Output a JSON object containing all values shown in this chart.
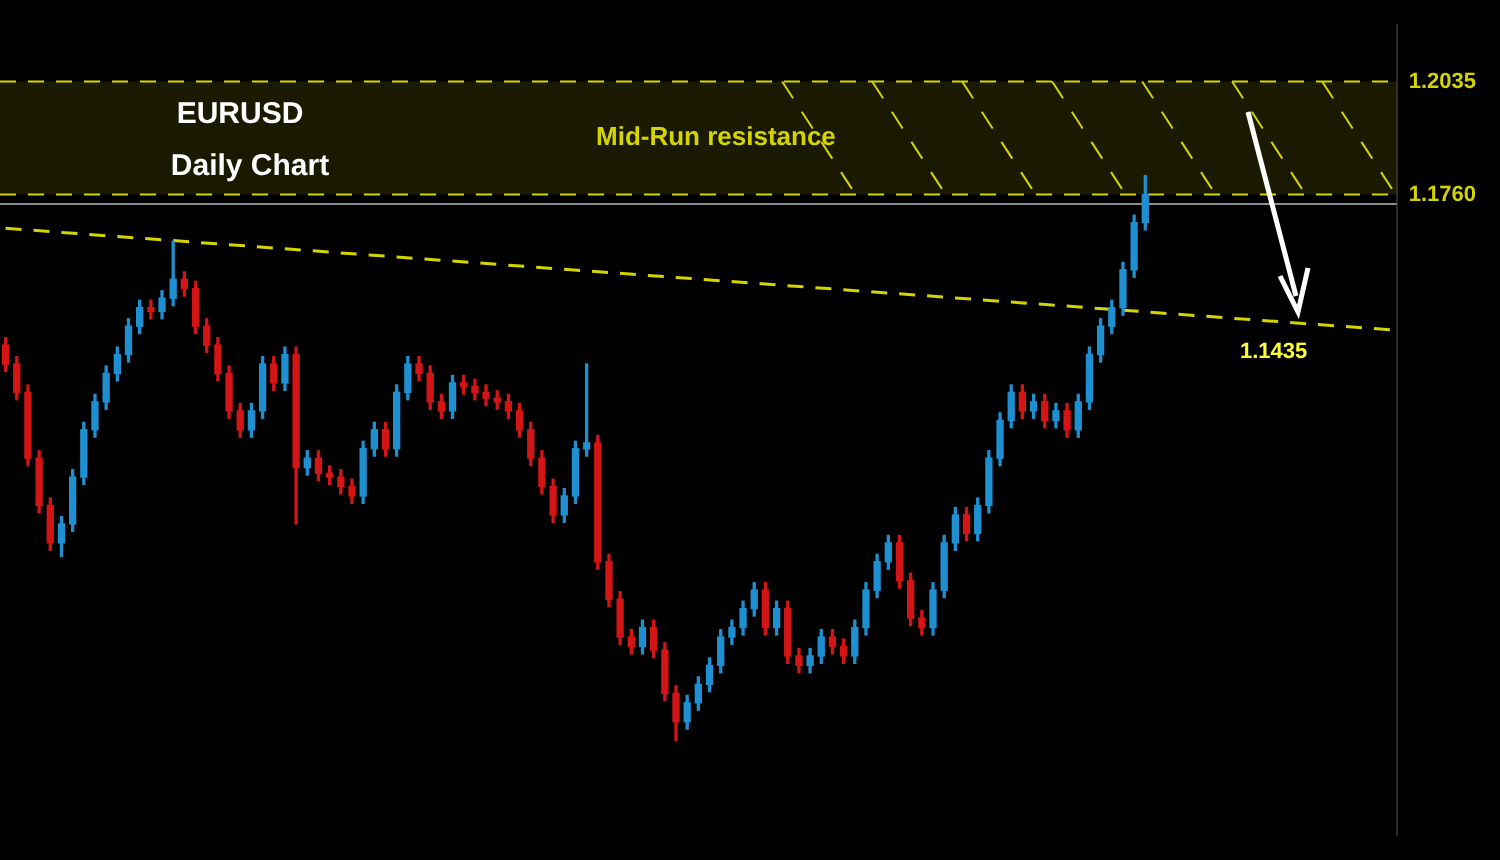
{
  "chart_data": {
    "type": "candlestick",
    "title": "EURUSD",
    "subtitle": "Daily Chart",
    "categories": [
      null,
      null,
      null,
      null,
      null,
      null,
      null,
      null,
      null,
      null,
      null,
      null,
      null,
      null,
      null,
      null,
      null,
      null,
      null,
      null,
      null,
      null,
      null,
      null,
      null,
      null,
      null,
      null,
      null,
      null,
      null,
      null,
      null,
      null,
      null,
      null,
      null,
      null,
      null,
      null,
      null,
      null,
      null,
      null,
      null,
      null,
      null,
      null,
      null,
      null,
      null,
      null,
      null,
      null,
      null,
      null,
      null,
      null,
      null,
      null,
      null,
      null,
      null,
      null,
      null,
      null,
      null,
      null,
      null,
      null,
      null,
      null,
      null,
      null,
      null,
      null,
      null,
      null,
      null,
      null,
      null,
      null,
      null,
      null,
      null,
      null,
      null,
      null,
      null,
      null,
      null,
      null,
      null,
      null,
      null,
      null,
      null,
      null,
      null,
      null,
      null,
      null,
      null,
      null,
      null,
      null,
      null,
      null,
      null,
      null,
      null,
      null,
      null,
      null,
      null,
      null,
      null,
      null,
      null,
      null,
      null,
      null,
      null,
      null,
      null
    ],
    "ohlc": [
      [
        1.1394,
        1.1412,
        1.133,
        1.1348
      ],
      [
        1.1348,
        1.1366,
        1.1261,
        1.1279
      ],
      [
        1.1279,
        1.1297,
        1.1101,
        1.1119
      ],
      [
        1.1119,
        1.1137,
        1.0986,
        1.1004
      ],
      [
        1.1004,
        1.1022,
        1.0895,
        1.0913
      ],
      [
        1.0913,
        1.0977,
        1.088,
        1.0959
      ],
      [
        1.0959,
        1.1091,
        1.0941,
        1.1073
      ],
      [
        1.1073,
        1.1206,
        1.1055,
        1.1188
      ],
      [
        1.1188,
        1.1274,
        1.117,
        1.1256
      ],
      [
        1.1256,
        1.1343,
        1.1238,
        1.1325
      ],
      [
        1.1325,
        1.1389,
        1.1307,
        1.1371
      ],
      [
        1.1371,
        1.1458,
        1.1353,
        1.144
      ],
      [
        1.144,
        1.1503,
        1.1422,
        1.1485
      ],
      [
        1.1485,
        1.1503,
        1.1458,
        1.1476
      ],
      [
        1.1476,
        1.1526,
        1.1458,
        1.1508
      ],
      [
        1.1508,
        1.1646,
        1.149,
        1.1554
      ],
      [
        1.1554,
        1.1572,
        1.1513,
        1.1531
      ],
      [
        1.1531,
        1.1549,
        1.1422,
        1.144
      ],
      [
        1.144,
        1.1458,
        1.1376,
        1.1394
      ],
      [
        1.1394,
        1.1412,
        1.1307,
        1.1325
      ],
      [
        1.1325,
        1.1343,
        1.1216,
        1.1234
      ],
      [
        1.1234,
        1.1252,
        1.117,
        1.1188
      ],
      [
        1.1188,
        1.1252,
        1.117,
        1.1234
      ],
      [
        1.1234,
        1.1366,
        1.1216,
        1.1348
      ],
      [
        1.1348,
        1.1366,
        1.1284,
        1.1302
      ],
      [
        1.1302,
        1.1389,
        1.1284,
        1.1371
      ],
      [
        1.1371,
        1.1389,
        1.0959,
        1.1096
      ],
      [
        1.1096,
        1.1137,
        1.1078,
        1.1119
      ],
      [
        1.1119,
        1.1137,
        1.1064,
        1.1082
      ],
      [
        1.1082,
        1.11,
        1.1055,
        1.1073
      ],
      [
        1.1073,
        1.1091,
        1.1032,
        1.105
      ],
      [
        1.105,
        1.1068,
        1.1009,
        1.1027
      ],
      [
        1.1027,
        1.116,
        1.1009,
        1.1142
      ],
      [
        1.1142,
        1.1206,
        1.1124,
        1.1188
      ],
      [
        1.1188,
        1.1206,
        1.1124,
        1.1142
      ],
      [
        1.1142,
        1.1297,
        1.1124,
        1.1279
      ],
      [
        1.1279,
        1.1366,
        1.1261,
        1.1348
      ],
      [
        1.1348,
        1.1366,
        1.1307,
        1.1325
      ],
      [
        1.1325,
        1.1343,
        1.1238,
        1.1256
      ],
      [
        1.1256,
        1.1274,
        1.1216,
        1.1234
      ],
      [
        1.1234,
        1.132,
        1.1216,
        1.1302
      ],
      [
        1.1302,
        1.132,
        1.1275,
        1.1293
      ],
      [
        1.1293,
        1.1311,
        1.1261,
        1.1279
      ],
      [
        1.1279,
        1.1297,
        1.1247,
        1.1265
      ],
      [
        1.1265,
        1.1283,
        1.1238,
        1.1256
      ],
      [
        1.1256,
        1.1274,
        1.1216,
        1.1234
      ],
      [
        1.1234,
        1.1252,
        1.117,
        1.1188
      ],
      [
        1.1188,
        1.1206,
        1.1101,
        1.1119
      ],
      [
        1.1119,
        1.1137,
        1.1032,
        1.105
      ],
      [
        1.105,
        1.1068,
        1.0963,
        1.0981
      ],
      [
        1.0981,
        1.1045,
        1.0963,
        1.1027
      ],
      [
        1.1027,
        1.116,
        1.1009,
        1.1142
      ],
      [
        1.1142,
        1.1348,
        1.1124,
        1.1156
      ],
      [
        1.1156,
        1.1174,
        1.0849,
        1.0867
      ],
      [
        1.0867,
        1.0885,
        1.0758,
        1.0776
      ],
      [
        1.0776,
        1.0794,
        1.0666,
        1.0684
      ],
      [
        1.0684,
        1.0702,
        1.0643,
        1.0661
      ],
      [
        1.0661,
        1.0725,
        1.0643,
        1.0707
      ],
      [
        1.0707,
        1.0725,
        1.0634,
        1.0652
      ],
      [
        1.0652,
        1.067,
        1.0529,
        1.0547
      ],
      [
        1.0547,
        1.0565,
        1.0432,
        1.0478
      ],
      [
        1.0478,
        1.0542,
        1.046,
        1.0524
      ],
      [
        1.0524,
        1.0587,
        1.0506,
        1.0569
      ],
      [
        1.0569,
        1.0633,
        1.0551,
        1.0615
      ],
      [
        1.0615,
        1.0702,
        1.0597,
        1.0684
      ],
      [
        1.0684,
        1.0725,
        1.0666,
        1.0707
      ],
      [
        1.0707,
        1.0771,
        1.0689,
        1.0753
      ],
      [
        1.0753,
        1.0816,
        1.0735,
        1.0798
      ],
      [
        1.0798,
        1.0816,
        1.0689,
        1.0707
      ],
      [
        1.0707,
        1.0771,
        1.0689,
        1.0753
      ],
      [
        1.0753,
        1.0771,
        1.062,
        1.0638
      ],
      [
        1.0638,
        1.0656,
        1.0597,
        1.0615
      ],
      [
        1.0615,
        1.0656,
        1.0597,
        1.0638
      ],
      [
        1.0638,
        1.0702,
        1.062,
        1.0684
      ],
      [
        1.0684,
        1.0702,
        1.0643,
        1.0661
      ],
      [
        1.0661,
        1.0679,
        1.062,
        1.0638
      ],
      [
        1.0638,
        1.0725,
        1.062,
        1.0707
      ],
      [
        1.0707,
        1.0816,
        1.0689,
        1.0798
      ],
      [
        1.0798,
        1.0885,
        1.078,
        1.0867
      ],
      [
        1.0867,
        1.0931,
        1.0849,
        1.0913
      ],
      [
        1.0913,
        1.0931,
        1.0803,
        1.0821
      ],
      [
        1.0821,
        1.0839,
        1.0712,
        1.073
      ],
      [
        1.073,
        1.0748,
        1.0689,
        1.0707
      ],
      [
        1.0707,
        1.0816,
        1.0689,
        1.0798
      ],
      [
        1.0798,
        1.0931,
        1.078,
        1.0913
      ],
      [
        1.0913,
        1.0999,
        1.0895,
        1.0981
      ],
      [
        1.0981,
        1.0999,
        1.0918,
        1.0936
      ],
      [
        1.0936,
        1.1022,
        1.0918,
        1.1004
      ],
      [
        1.1004,
        1.1137,
        1.0986,
        1.1119
      ],
      [
        1.1119,
        1.1229,
        1.1101,
        1.1211
      ],
      [
        1.1211,
        1.1297,
        1.1193,
        1.1279
      ],
      [
        1.1279,
        1.1297,
        1.1216,
        1.1234
      ],
      [
        1.1234,
        1.1274,
        1.1216,
        1.1256
      ],
      [
        1.1256,
        1.1274,
        1.1193,
        1.1211
      ],
      [
        1.1211,
        1.1252,
        1.1193,
        1.1234
      ],
      [
        1.1234,
        1.1252,
        1.117,
        1.1188
      ],
      [
        1.1188,
        1.1274,
        1.117,
        1.1256
      ],
      [
        1.1256,
        1.1389,
        1.1238,
        1.1371
      ],
      [
        1.1371,
        1.1458,
        1.1353,
        1.144
      ],
      [
        1.144,
        1.1503,
        1.1422,
        1.1485
      ],
      [
        1.1485,
        1.1595,
        1.1467,
        1.1577
      ],
      [
        1.1577,
        1.171,
        1.1559,
        1.1692
      ],
      [
        1.1692,
        1.1806,
        1.1674,
        1.176
      ],
      null,
      null,
      null,
      null,
      null,
      null,
      null,
      null,
      null,
      null,
      null,
      null,
      null,
      null,
      null,
      null,
      null,
      null,
      null,
      null,
      null,
      null
    ],
    "colors": [
      "#d41515",
      "#d41515",
      "#d41515",
      "#d41515",
      "#d41515",
      "#1e8fd0",
      "#1e8fd0",
      "#1e8fd0",
      "#1e8fd0",
      "#1e8fd0",
      "#1e8fd0",
      "#1e8fd0",
      "#1e8fd0",
      "#d41515",
      "#1e8fd0",
      "#1e8fd0",
      "#d41515",
      "#d41515",
      "#d41515",
      "#d41515",
      "#d41515",
      "#d41515",
      "#1e8fd0",
      "#1e8fd0",
      "#d41515",
      "#1e8fd0",
      "#d41515",
      "#1e8fd0",
      "#d41515",
      "#d41515",
      "#d41515",
      "#d41515",
      "#1e8fd0",
      "#1e8fd0",
      "#d41515",
      "#1e8fd0",
      "#1e8fd0",
      "#d41515",
      "#d41515",
      "#d41515",
      "#1e8fd0",
      "#d41515",
      "#d41515",
      "#d41515",
      "#d41515",
      "#d41515",
      "#d41515",
      "#d41515",
      "#d41515",
      "#d41515",
      "#1e8fd0",
      "#1e8fd0",
      "#1e8fd0",
      "#d41515",
      "#d41515",
      "#d41515",
      "#d41515",
      "#1e8fd0",
      "#d41515",
      "#d41515",
      "#d41515",
      "#1e8fd0",
      "#1e8fd0",
      "#1e8fd0",
      "#1e8fd0",
      "#1e8fd0",
      "#1e8fd0",
      "#1e8fd0",
      "#d41515",
      "#1e8fd0",
      "#d41515",
      "#d41515",
      "#1e8fd0",
      "#1e8fd0",
      "#d41515",
      "#d41515",
      "#1e8fd0",
      "#1e8fd0",
      "#1e8fd0",
      "#1e8fd0",
      "#d41515",
      "#d41515",
      "#d41515",
      "#1e8fd0",
      "#1e8fd0",
      "#1e8fd0",
      "#d41515",
      "#1e8fd0",
      "#1e8fd0",
      "#1e8fd0",
      "#1e8fd0",
      "#d41515",
      "#1e8fd0",
      "#d41515",
      "#1e8fd0",
      "#d41515",
      "#1e8fd0",
      "#1e8fd0",
      "#1e8fd0",
      "#1e8fd0",
      "#1e8fd0",
      "#1e8fd0",
      "#1e8fd0",
      null,
      null,
      null,
      null,
      null,
      null,
      null,
      null,
      null,
      null,
      null,
      null,
      null,
      null,
      null,
      null,
      null,
      null,
      null,
      null,
      null,
      null
    ],
    "series": [
      {
        "type": "line",
        "color": "#d4d400",
        "line_style": "dashed",
        "values": [
          1.1678,
          null,
          null,
          null,
          null,
          null,
          null,
          null,
          null,
          null,
          null,
          null,
          null,
          null,
          null,
          null,
          null,
          null,
          null,
          null,
          null,
          null,
          null,
          null,
          null,
          null,
          null,
          null,
          null,
          null,
          null,
          null,
          null,
          null,
          null,
          null,
          null,
          null,
          null,
          null,
          null,
          null,
          null,
          null,
          null,
          null,
          null,
          null,
          null,
          null,
          null,
          null,
          null,
          null,
          null,
          null,
          null,
          null,
          null,
          null,
          null,
          null,
          null,
          null,
          null,
          null,
          null,
          null,
          null,
          null,
          null,
          null,
          null,
          null,
          null,
          null,
          null,
          null,
          null,
          null,
          null,
          null,
          null,
          null,
          null,
          null,
          null,
          null,
          null,
          null,
          null,
          null,
          null,
          null,
          null,
          null,
          null,
          null,
          null,
          null,
          null,
          null,
          null,
          null,
          null,
          null,
          null,
          null,
          null,
          null,
          null,
          null,
          null,
          null,
          null,
          null,
          null,
          null,
          null,
          null,
          null,
          null,
          null,
          null,
          1.1431
        ]
      }
    ],
    "ylim": [
      1.0203,
      1.2172
    ],
    "yticks": [
      {
        "value": 1.2035,
        "label": "1.2035"
      },
      {
        "value": 1.176,
        "label": "1.1760"
      }
    ],
    "tick_labels": "y",
    "ref_lines": [
      {
        "axis": "y",
        "value": 1.2035,
        "color": "#d4d400",
        "line_style": "dashed"
      },
      {
        "axis": "y",
        "value": 1.176,
        "color": "#d4d400",
        "line_style": "dashed"
      },
      {
        "axis": "y",
        "value": 1.1737,
        "color": "#8c8c8c",
        "line_style": "solid"
      }
    ],
    "bands": [
      {
        "axis": "y",
        "from": 1.176,
        "to": 1.2035,
        "label": "Mid-Run resistance",
        "color": "#d4d400"
      }
    ],
    "annotations": [
      "1.1435"
    ]
  }
}
